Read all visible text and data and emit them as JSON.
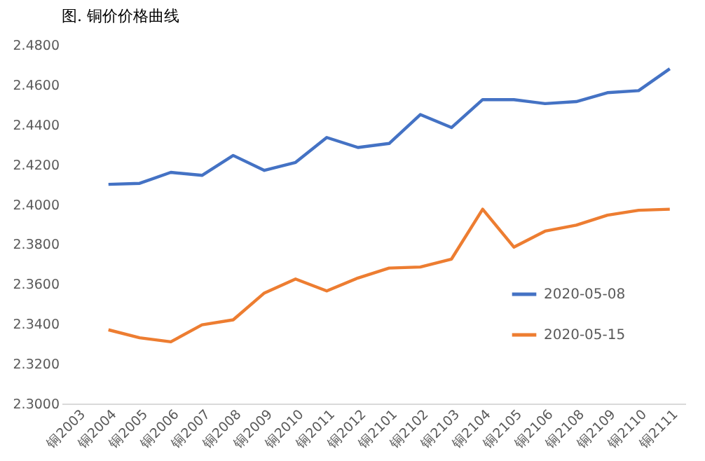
{
  "chart_data": {
    "type": "line",
    "title": "图. 铜价价格曲线",
    "categories": [
      "铜2003",
      "铜2004",
      "铜2005",
      "铜2006",
      "铜2007",
      "铜2008",
      "铜2009",
      "铜2010",
      "铜2011",
      "铜2012",
      "铜2101",
      "铜2102",
      "铜2103",
      "铜2104",
      "铜2105",
      "铜2106",
      "铜2108",
      "铜2109",
      "铜2110",
      "铜2111"
    ],
    "series": [
      {
        "name": "2020-05-08",
        "color": "#4472c4",
        "values": [
          null,
          2.41,
          2.4105,
          2.416,
          2.4145,
          2.4245,
          2.417,
          2.421,
          2.4335,
          2.4285,
          2.4305,
          2.445,
          2.4385,
          2.4525,
          2.4525,
          2.4505,
          2.4515,
          2.456,
          2.457,
          2.468
        ]
      },
      {
        "name": "2020-05-15",
        "color": "#ed7d31",
        "values": [
          null,
          2.337,
          2.333,
          2.331,
          2.3395,
          2.342,
          2.3555,
          2.3625,
          2.3565,
          2.363,
          2.368,
          2.3685,
          2.3725,
          2.3975,
          2.3785,
          2.3865,
          2.3895,
          2.3945,
          2.397,
          2.3975
        ]
      }
    ],
    "ylim": [
      2.3,
      2.48
    ],
    "yticks": [
      {
        "value": 2.3,
        "label": "2.3000"
      },
      {
        "value": 2.32,
        "label": "2.3200"
      },
      {
        "value": 2.34,
        "label": "2.3400"
      },
      {
        "value": 2.36,
        "label": "2.3600"
      },
      {
        "value": 2.38,
        "label": "2.3800"
      },
      {
        "value": 2.4,
        "label": "2.4000"
      },
      {
        "value": 2.42,
        "label": "2.4200"
      },
      {
        "value": 2.44,
        "label": "2.4400"
      },
      {
        "value": 2.46,
        "label": "2.4600"
      },
      {
        "value": 2.48,
        "label": "2.4800"
      }
    ],
    "grid": false,
    "legend": "bottom right",
    "marker": "none",
    "line_style": "solid"
  }
}
